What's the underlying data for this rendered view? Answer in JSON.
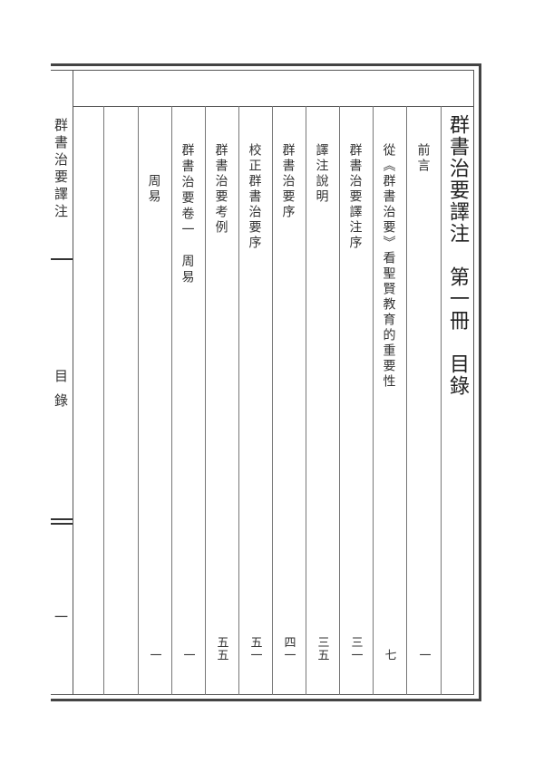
{
  "book_title_vertical": "群書治要譯注　第一冊　目錄",
  "gutter": {
    "running_title": "群書治要譯注",
    "section": "目錄",
    "page_number": "一"
  },
  "toc": [
    {
      "title": "前言",
      "page": "一"
    },
    {
      "title": "從《群書治要》看聖賢教育的重要性",
      "page": "七"
    },
    {
      "title": "群書治要譯注序",
      "page": "三一"
    },
    {
      "title": "譯注說明",
      "page": "三五"
    },
    {
      "title": "群書治要序",
      "page": "四一"
    },
    {
      "title": "校正群書治要序",
      "page": "五一"
    },
    {
      "title": "群書治要考例",
      "page": "五五"
    },
    {
      "title": "群書治要卷一　周易",
      "page": "一"
    },
    {
      "title": "周易",
      "page": "一"
    }
  ]
}
